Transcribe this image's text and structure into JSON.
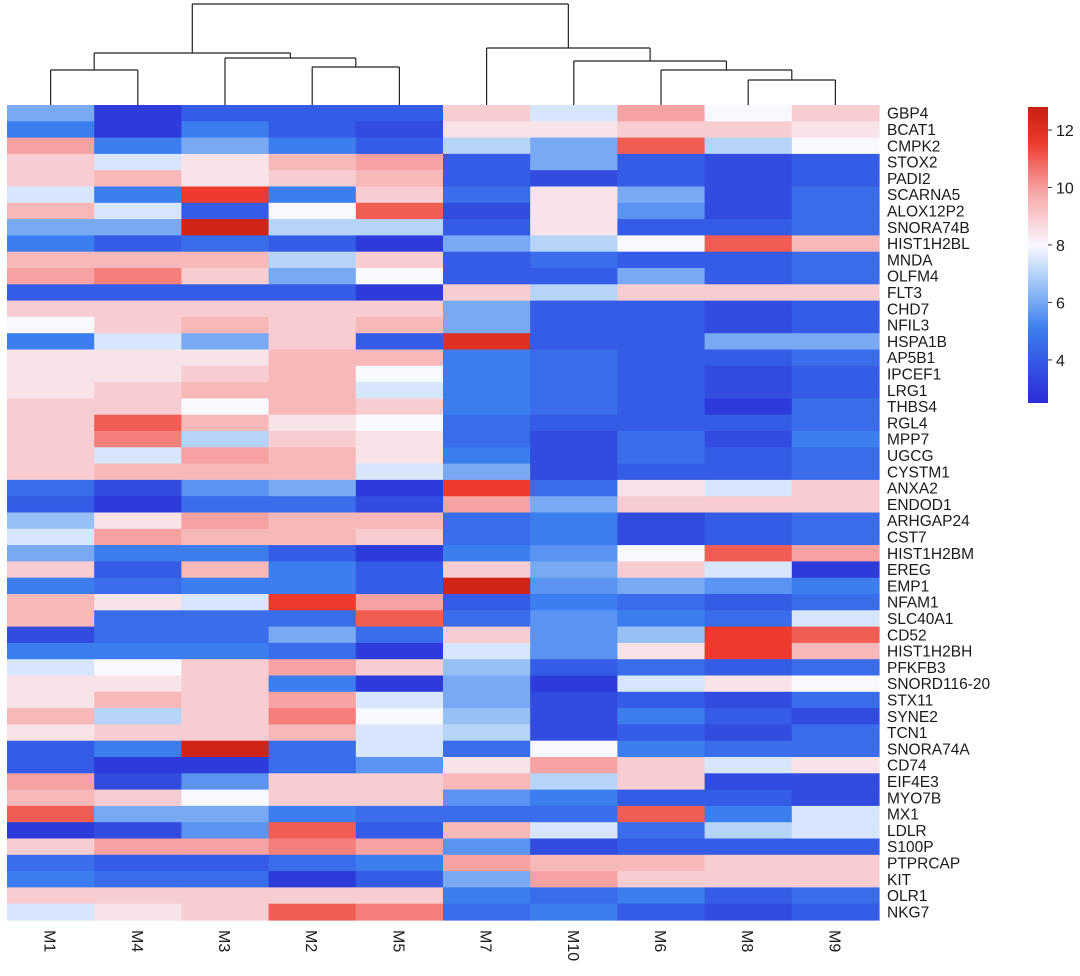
{
  "chart_data": {
    "type": "heatmap",
    "title": "",
    "xlabel": "",
    "ylabel": "",
    "columns": [
      "M1",
      "M4",
      "M3",
      "M2",
      "M5",
      "M7",
      "M10",
      "M6",
      "M8",
      "M9"
    ],
    "rows": [
      "GBP4",
      "BCAT1",
      "CMPK2",
      "STOX2",
      "PADI2",
      "SCARNA5",
      "ALOX12P2",
      "SNORA74B",
      "HIST1H2BL",
      "MNDA",
      "OLFM4",
      "FLT3",
      "CHD7",
      "NFIL3",
      "HSPA1B",
      "AP5B1",
      "IPCEF1",
      "LRG1",
      "THBS4",
      "RGL4",
      "MPP7",
      "UGCG",
      "CYSTM1",
      "ANXA2",
      "ENDOD1",
      "ARHGAP24",
      "CST7",
      "HIST1H2BM",
      "EREG",
      "EMP1",
      "NFAM1",
      "SLC40A1",
      "CD52",
      "HIST1H2BH",
      "PFKFB3",
      "SNORD116-20",
      "STX11",
      "SYNE2",
      "TCN1",
      "SNORA74A",
      "CD74",
      "EIF4E3",
      "MYO7B",
      "MX1",
      "LDLR",
      "S100P",
      "PTPRCAP",
      "KIT",
      "OLR1",
      "NKG7"
    ],
    "values": [
      [
        6,
        3,
        4,
        4,
        4,
        9,
        7.5,
        10,
        8,
        9
      ],
      [
        5,
        3,
        5,
        4,
        3.5,
        8.5,
        8.5,
        9,
        9,
        8.5
      ],
      [
        10,
        5,
        6,
        5,
        4,
        7,
        6,
        11,
        7,
        8
      ],
      [
        9,
        7.5,
        8.5,
        9.5,
        10,
        4,
        6,
        4,
        3.5,
        4
      ],
      [
        9,
        9.5,
        8.5,
        9,
        9.5,
        4,
        3.5,
        4,
        3.5,
        4
      ],
      [
        7.5,
        5,
        11.5,
        5,
        9,
        4.5,
        8.5,
        6,
        3.5,
        4.5
      ],
      [
        9.5,
        7.5,
        4,
        8,
        11,
        3.5,
        8.5,
        5.5,
        3.5,
        4.5
      ],
      [
        6,
        6,
        12.5,
        7,
        7,
        4,
        8.5,
        4,
        4,
        4.5
      ],
      [
        5,
        4,
        4.5,
        4,
        3,
        6,
        7,
        8,
        11,
        9.5
      ],
      [
        9.5,
        9.5,
        9.5,
        7,
        9,
        4,
        4.5,
        4,
        4,
        4.5
      ],
      [
        10,
        10.5,
        9,
        6,
        8,
        4,
        4,
        6,
        4,
        4.5
      ],
      [
        4,
        4,
        4,
        4,
        3,
        9,
        7,
        9,
        9,
        9
      ],
      [
        9,
        9,
        9,
        9,
        9,
        6,
        4,
        4,
        3.5,
        4
      ],
      [
        8,
        9,
        9.5,
        9,
        9.5,
        6,
        4,
        4,
        3.5,
        4
      ],
      [
        5,
        7.5,
        6,
        9,
        4,
        12,
        4,
        4,
        6,
        6
      ],
      [
        8.5,
        8.5,
        8.5,
        9.5,
        9.5,
        5,
        4.5,
        4,
        4,
        4.5
      ],
      [
        8.5,
        8.5,
        9,
        9.5,
        8,
        5,
        4.5,
        4,
        3.5,
        4
      ],
      [
        8.5,
        9,
        9.5,
        9.5,
        7.5,
        5,
        4.5,
        4,
        3.5,
        4
      ],
      [
        9,
        9,
        8,
        9.5,
        9,
        5,
        4.5,
        4,
        3,
        4.5
      ],
      [
        9,
        11,
        9.5,
        8.5,
        8,
        4.5,
        4,
        4,
        4,
        4.5
      ],
      [
        9,
        10.5,
        7,
        9,
        8.5,
        4.5,
        3.5,
        4.5,
        3.5,
        5
      ],
      [
        9,
        7.5,
        10,
        9.5,
        8.5,
        5,
        3.5,
        4.5,
        4,
        4.5
      ],
      [
        9,
        9.5,
        9.5,
        9.5,
        7.5,
        6,
        3.5,
        4,
        4,
        4.5
      ],
      [
        4.5,
        3.5,
        5.5,
        6,
        3,
        11.5,
        4.5,
        8.5,
        7.5,
        9
      ],
      [
        4,
        3,
        4.5,
        4.5,
        3.5,
        10,
        6,
        9,
        9,
        9
      ],
      [
        6.5,
        8.5,
        10,
        9.5,
        9.5,
        4.5,
        5,
        3.5,
        4,
        4.5
      ],
      [
        7.5,
        10,
        9.5,
        9.5,
        9,
        4.5,
        5,
        3.5,
        4,
        4.5
      ],
      [
        6,
        5,
        5,
        4,
        3,
        5,
        5.5,
        8,
        11,
        10
      ],
      [
        9,
        4,
        9.5,
        5,
        4,
        9,
        6,
        9,
        7.5,
        3
      ],
      [
        5,
        4.5,
        5,
        5,
        4,
        12.5,
        5.5,
        6,
        5.5,
        5
      ],
      [
        9.5,
        8.5,
        7.5,
        11.5,
        10,
        4,
        5,
        4.5,
        4,
        4.5
      ],
      [
        9.5,
        4.5,
        4.5,
        4.5,
        11,
        4.5,
        5.5,
        5,
        4.5,
        7.5
      ],
      [
        3.5,
        4.5,
        4.5,
        6,
        4.5,
        9,
        5.5,
        6.5,
        11.5,
        11
      ],
      [
        5,
        5,
        5,
        4.5,
        3,
        7.5,
        5.5,
        8.5,
        11.5,
        9.5
      ],
      [
        7.5,
        8,
        9,
        10,
        9,
        6.5,
        4,
        4.5,
        4,
        4.5
      ],
      [
        8.5,
        8.5,
        9,
        5,
        3,
        6,
        3,
        7.5,
        8.5,
        8
      ],
      [
        8.5,
        9.5,
        9,
        10,
        7.5,
        6,
        3.5,
        4,
        3.5,
        4.5
      ],
      [
        9.5,
        7,
        9,
        10.5,
        8,
        6.5,
        3.5,
        5,
        4,
        3.5
      ],
      [
        8.5,
        9,
        9,
        9.5,
        7.5,
        7,
        3.5,
        4,
        3.5,
        4.5
      ],
      [
        4,
        5,
        12.5,
        4.5,
        7.5,
        4.5,
        8,
        5,
        4.5,
        4.5
      ],
      [
        4,
        3,
        3,
        4.5,
        5.5,
        8.5,
        10,
        9,
        7.5,
        8.5
      ],
      [
        10,
        3.5,
        5.5,
        9,
        9,
        9.5,
        7,
        9,
        3.5,
        3.5
      ],
      [
        9.5,
        9,
        8,
        9,
        9,
        5.5,
        5,
        4,
        4,
        3.5
      ],
      [
        11,
        6,
        6,
        5,
        4.5,
        4.5,
        4.5,
        11,
        5,
        7.5
      ],
      [
        3,
        3.5,
        5.5,
        11,
        4,
        9.5,
        7.5,
        4.5,
        7,
        7.5
      ],
      [
        9,
        10,
        10,
        10.5,
        10,
        5.5,
        3.5,
        4,
        4,
        4
      ],
      [
        4.5,
        4,
        4,
        4.5,
        5,
        10,
        9.5,
        9.5,
        9,
        9
      ],
      [
        5,
        4.5,
        4.5,
        3,
        4,
        6,
        10,
        9,
        9,
        9
      ],
      [
        9,
        9,
        9,
        9,
        9,
        5,
        4.5,
        5,
        4,
        4.5
      ],
      [
        7.5,
        8.5,
        9,
        11,
        10.5,
        4.5,
        5,
        4,
        3.5,
        4
      ]
    ],
    "colorbar": {
      "min": 2.5,
      "max": 12.8,
      "ticks": [
        4,
        6,
        8,
        10,
        12
      ]
    },
    "colors": {
      "low": "#2b2bd6",
      "mid": "#f8f8ff",
      "high": "#c71e10"
    },
    "legend_position": "top-right"
  }
}
